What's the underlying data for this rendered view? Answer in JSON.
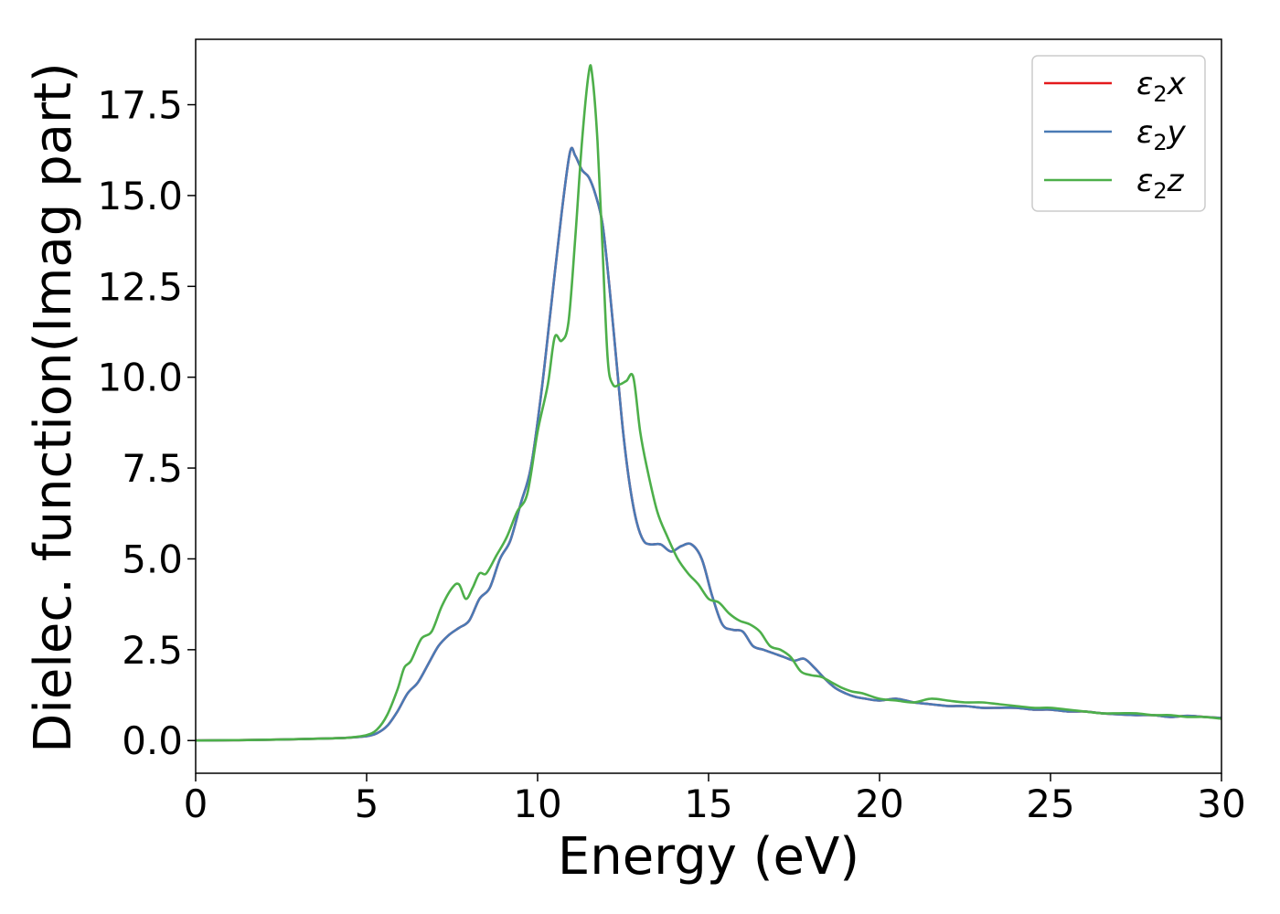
{
  "chart_data": {
    "type": "line",
    "xlabel": "Energy (eV)",
    "ylabel": "Dielec. function(Imag part)",
    "xlim": [
      0,
      30
    ],
    "ylim": [
      -0.9,
      19.3
    ],
    "xticks": [
      0,
      5,
      10,
      15,
      20,
      25,
      30
    ],
    "xtick_labels": [
      "0",
      "5",
      "10",
      "15",
      "20",
      "25",
      "30"
    ],
    "yticks": [
      0.0,
      2.5,
      5.0,
      7.5,
      10.0,
      12.5,
      15.0,
      17.5
    ],
    "ytick_labels": [
      "0.0",
      "2.5",
      "5.0",
      "7.5",
      "10.0",
      "12.5",
      "15.0",
      "17.5"
    ],
    "grid": false,
    "legend_position": "top-right",
    "series": [
      {
        "name": "ε₂x",
        "legend_base": "ε",
        "legend_sub": "2",
        "legend_var": "x",
        "color": "#e41a1c",
        "x": [
          0,
          2,
          4,
          4.5,
          5,
          5.3,
          5.6,
          5.9,
          6.2,
          6.5,
          6.8,
          7.1,
          7.4,
          7.7,
          8.0,
          8.3,
          8.6,
          8.9,
          9.2,
          9.5,
          9.8,
          10.1,
          10.4,
          10.7,
          10.95,
          11.1,
          11.3,
          11.5,
          11.7,
          11.9,
          12.1,
          12.3,
          12.5,
          12.7,
          12.9,
          13.1,
          13.3,
          13.6,
          13.9,
          14.2,
          14.5,
          14.8,
          15.1,
          15.4,
          15.7,
          16.0,
          16.3,
          16.6,
          16.9,
          17.2,
          17.5,
          17.8,
          18.1,
          18.4,
          18.7,
          19.0,
          19.3,
          19.6,
          20.0,
          20.5,
          21.0,
          21.5,
          22.0,
          22.5,
          23.0,
          23.5,
          24.0,
          24.5,
          25.0,
          25.5,
          26.0,
          26.5,
          27.0,
          27.5,
          28.0,
          28.5,
          29.0,
          29.5,
          30.0
        ],
        "y": [
          0.0,
          0.02,
          0.06,
          0.08,
          0.12,
          0.2,
          0.4,
          0.8,
          1.3,
          1.6,
          2.1,
          2.6,
          2.9,
          3.1,
          3.3,
          3.9,
          4.2,
          5.0,
          5.5,
          6.5,
          7.5,
          9.5,
          12.0,
          14.5,
          16.2,
          16.1,
          15.7,
          15.5,
          15.0,
          14.2,
          12.5,
          10.5,
          8.5,
          7.0,
          6.0,
          5.5,
          5.4,
          5.4,
          5.2,
          5.35,
          5.4,
          5.0,
          4.0,
          3.2,
          3.05,
          3.0,
          2.6,
          2.5,
          2.4,
          2.3,
          2.2,
          2.25,
          2.0,
          1.7,
          1.45,
          1.3,
          1.2,
          1.15,
          1.1,
          1.15,
          1.05,
          1.0,
          0.95,
          0.95,
          0.9,
          0.9,
          0.9,
          0.85,
          0.85,
          0.8,
          0.8,
          0.75,
          0.72,
          0.7,
          0.7,
          0.65,
          0.68,
          0.65,
          0.62
        ]
      },
      {
        "name": "ε₂y",
        "legend_base": "ε",
        "legend_sub": "2",
        "legend_var": "y",
        "color": "#4a7ab5",
        "x": [
          0,
          2,
          4,
          4.5,
          5,
          5.3,
          5.6,
          5.9,
          6.2,
          6.5,
          6.8,
          7.1,
          7.4,
          7.7,
          8.0,
          8.3,
          8.6,
          8.9,
          9.2,
          9.5,
          9.8,
          10.1,
          10.4,
          10.7,
          10.95,
          11.1,
          11.3,
          11.5,
          11.7,
          11.9,
          12.1,
          12.3,
          12.5,
          12.7,
          12.9,
          13.1,
          13.3,
          13.6,
          13.9,
          14.2,
          14.5,
          14.8,
          15.1,
          15.4,
          15.7,
          16.0,
          16.3,
          16.6,
          16.9,
          17.2,
          17.5,
          17.8,
          18.1,
          18.4,
          18.7,
          19.0,
          19.3,
          19.6,
          20.0,
          20.5,
          21.0,
          21.5,
          22.0,
          22.5,
          23.0,
          23.5,
          24.0,
          24.5,
          25.0,
          25.5,
          26.0,
          26.5,
          27.0,
          27.5,
          28.0,
          28.5,
          29.0,
          29.5,
          30.0
        ],
        "y": [
          0.0,
          0.02,
          0.06,
          0.08,
          0.12,
          0.2,
          0.4,
          0.8,
          1.3,
          1.6,
          2.1,
          2.6,
          2.9,
          3.1,
          3.3,
          3.9,
          4.2,
          5.0,
          5.5,
          6.5,
          7.5,
          9.5,
          12.0,
          14.5,
          16.2,
          16.1,
          15.7,
          15.5,
          15.0,
          14.2,
          12.5,
          10.5,
          8.5,
          7.0,
          6.0,
          5.5,
          5.4,
          5.4,
          5.2,
          5.35,
          5.4,
          5.0,
          4.0,
          3.2,
          3.05,
          3.0,
          2.6,
          2.5,
          2.4,
          2.3,
          2.2,
          2.25,
          2.0,
          1.7,
          1.45,
          1.3,
          1.2,
          1.15,
          1.1,
          1.15,
          1.05,
          1.0,
          0.95,
          0.95,
          0.9,
          0.9,
          0.9,
          0.85,
          0.85,
          0.8,
          0.8,
          0.75,
          0.72,
          0.7,
          0.7,
          0.65,
          0.68,
          0.65,
          0.62
        ]
      },
      {
        "name": "ε₂z",
        "legend_base": "ε",
        "legend_sub": "2",
        "legend_var": "z",
        "color": "#4daf4a",
        "x": [
          0,
          2,
          4,
          4.5,
          5,
          5.3,
          5.6,
          5.9,
          6.1,
          6.3,
          6.6,
          6.9,
          7.2,
          7.5,
          7.7,
          7.9,
          8.1,
          8.3,
          8.5,
          8.8,
          9.1,
          9.4,
          9.7,
          10.0,
          10.3,
          10.5,
          10.7,
          10.9,
          11.1,
          11.3,
          11.5,
          11.6,
          11.75,
          11.9,
          12.05,
          12.2,
          12.4,
          12.6,
          12.8,
          13.0,
          13.2,
          13.5,
          13.8,
          14.1,
          14.4,
          14.7,
          15.0,
          15.3,
          15.6,
          15.9,
          16.2,
          16.5,
          16.8,
          17.1,
          17.4,
          17.7,
          18.0,
          18.3,
          18.6,
          18.9,
          19.2,
          19.5,
          20.0,
          20.5,
          21.0,
          21.5,
          22.0,
          22.5,
          23.0,
          23.5,
          24.0,
          24.5,
          25.0,
          25.5,
          26.0,
          26.5,
          27.0,
          27.5,
          28.0,
          28.5,
          29.0,
          29.5,
          30.0
        ],
        "y": [
          0.0,
          0.02,
          0.06,
          0.08,
          0.15,
          0.3,
          0.7,
          1.4,
          2.0,
          2.2,
          2.8,
          3.0,
          3.7,
          4.2,
          4.3,
          3.9,
          4.2,
          4.6,
          4.6,
          5.1,
          5.6,
          6.3,
          6.8,
          8.5,
          9.8,
          11.1,
          11.0,
          11.5,
          13.8,
          16.5,
          18.4,
          18.3,
          16.5,
          13.5,
          10.5,
          9.8,
          9.8,
          9.9,
          10.0,
          8.5,
          7.5,
          6.3,
          5.6,
          5.0,
          4.6,
          4.3,
          3.9,
          3.8,
          3.5,
          3.3,
          3.2,
          3.0,
          2.6,
          2.5,
          2.3,
          1.9,
          1.8,
          1.75,
          1.6,
          1.45,
          1.35,
          1.3,
          1.15,
          1.1,
          1.05,
          1.15,
          1.1,
          1.05,
          1.05,
          1.0,
          0.95,
          0.9,
          0.9,
          0.85,
          0.8,
          0.75,
          0.75,
          0.75,
          0.7,
          0.7,
          0.65,
          0.65,
          0.6
        ]
      }
    ]
  }
}
